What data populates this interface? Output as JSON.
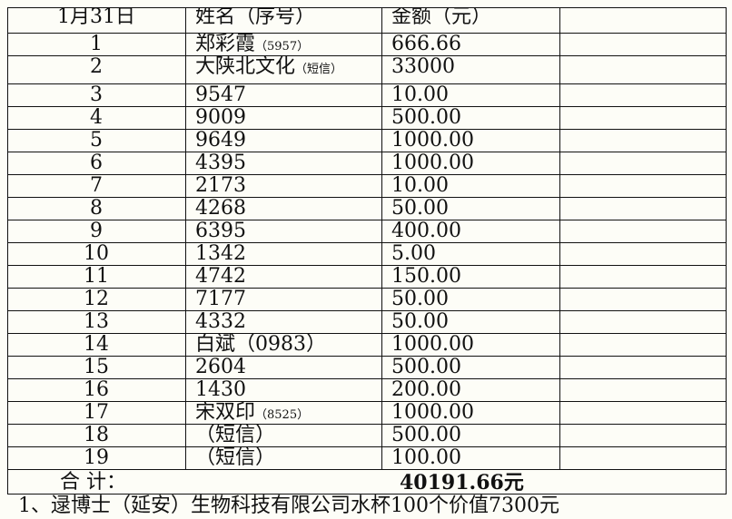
{
  "table": {
    "header": [
      "1月31日",
      "姓名（序号）",
      "金额（元）"
    ],
    "rows": [
      {
        "no": "1",
        "name": "郑彩霞",
        "note": "（5957）",
        "amount": "666.66"
      },
      {
        "no": "2",
        "name": "大陕北文化",
        "note": "（短信）",
        "amount": "33000"
      },
      {
        "no": "3",
        "name": "9547",
        "amount": "10.00"
      },
      {
        "no": "4",
        "name": "9009",
        "amount": "500.00"
      },
      {
        "no": "5",
        "name": "9649",
        "amount": "1000.00"
      },
      {
        "no": "6",
        "name": "4395",
        "amount": "1000.00"
      },
      {
        "no": "7",
        "name": "2173",
        "amount": "10.00"
      },
      {
        "no": "8",
        "name": "4268",
        "amount": "50.00"
      },
      {
        "no": "9",
        "name": "6395",
        "amount": "400.00"
      },
      {
        "no": "10",
        "name": "1342",
        "amount": "5.00"
      },
      {
        "no": "11",
        "name": "4742",
        "amount": "150.00"
      },
      {
        "no": "12",
        "name": "7177",
        "amount": "50.00"
      },
      {
        "no": "13",
        "name": "4332",
        "amount": "50.00"
      },
      {
        "no": "14",
        "name": "白斌（0983）",
        "amount": "1000.00"
      },
      {
        "no": "15",
        "name": "2604",
        "amount": "500.00"
      },
      {
        "no": "16",
        "name": "1430",
        "amount": "200.00"
      },
      {
        "no": "17",
        "name": "宋双印",
        "note": "（8525）",
        "amount": "1000.00"
      },
      {
        "no": "18",
        "name": "（短信）",
        "amount": "500.00"
      },
      {
        "no": "19",
        "name": "（短信）",
        "amount": "100.00"
      }
    ],
    "total": {
      "label": "合 计：",
      "amount": "40191.66元"
    }
  },
  "footer": "1、逯博士（延安）生物科技有限公司水杯100个价值7300元"
}
